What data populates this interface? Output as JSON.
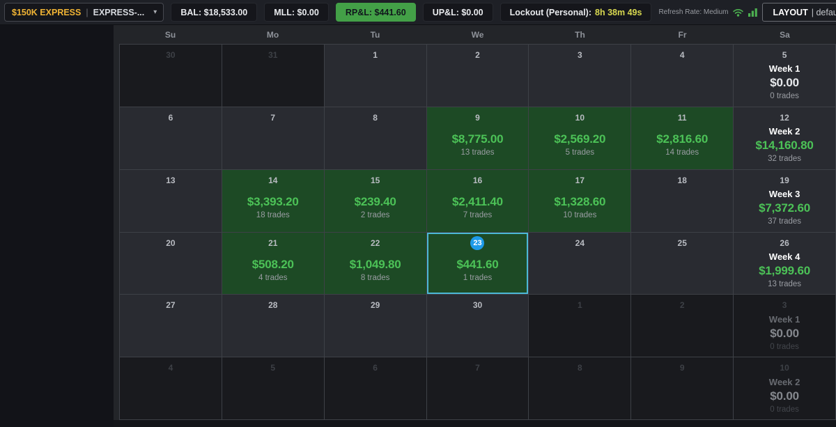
{
  "colors": {
    "accent_green": "#43a047",
    "positive_green": "#4cc257",
    "gold": "#f1b434",
    "lockout_yellow": "#d8d850",
    "today_border": "#4cb8d6",
    "today_badge": "#1e9be9",
    "icon_green": "#4caf50"
  },
  "topbar": {
    "account": {
      "name": "$150K EXPRESS",
      "separator": "|",
      "instance": "EXPRESS-...",
      "caret": "▾"
    },
    "stats": [
      {
        "label": "BAL: $18,533.00",
        "variant": "default"
      },
      {
        "label": "MLL: $0.00",
        "variant": "default"
      },
      {
        "label": "RP&L: $441.60",
        "variant": "green"
      },
      {
        "label": "UP&L: $0.00",
        "variant": "default"
      }
    ],
    "lockout": {
      "label": "Lockout (Personal):",
      "time": "8h 38m 49s"
    },
    "refresh": {
      "label": "Refresh Rate: Medium"
    },
    "layout_button": {
      "label": "LAYOUT",
      "value": "| default"
    }
  },
  "calendar": {
    "day_headers": [
      "Su",
      "Mo",
      "Tu",
      "We",
      "Th",
      "Fr",
      "Sa"
    ],
    "weeks": [
      [
        {
          "day": "30",
          "muted": true
        },
        {
          "day": "31",
          "muted": true
        },
        {
          "day": "1"
        },
        {
          "day": "2"
        },
        {
          "day": "3"
        },
        {
          "day": "4"
        },
        {
          "day": "5",
          "summary": true,
          "week_label": "Week 1",
          "pnl": "$0.00",
          "trades": "0 trades"
        }
      ],
      [
        {
          "day": "6"
        },
        {
          "day": "7"
        },
        {
          "day": "8"
        },
        {
          "day": "9",
          "pnl": "$8,775.00",
          "trades": "13 trades",
          "positive": true
        },
        {
          "day": "10",
          "pnl": "$2,569.20",
          "trades": "5 trades",
          "positive": true
        },
        {
          "day": "11",
          "pnl": "$2,816.60",
          "trades": "14 trades",
          "positive": true
        },
        {
          "day": "12",
          "summary": true,
          "week_label": "Week 2",
          "pnl": "$14,160.80",
          "trades": "32 trades",
          "positive": true
        }
      ],
      [
        {
          "day": "13"
        },
        {
          "day": "14",
          "pnl": "$3,393.20",
          "trades": "18 trades",
          "positive": true
        },
        {
          "day": "15",
          "pnl": "$239.40",
          "trades": "2 trades",
          "positive": true
        },
        {
          "day": "16",
          "pnl": "$2,411.40",
          "trades": "7 trades",
          "positive": true
        },
        {
          "day": "17",
          "pnl": "$1,328.60",
          "trades": "10 trades",
          "positive": true
        },
        {
          "day": "18"
        },
        {
          "day": "19",
          "summary": true,
          "week_label": "Week 3",
          "pnl": "$7,372.60",
          "trades": "37 trades",
          "positive": true
        }
      ],
      [
        {
          "day": "20"
        },
        {
          "day": "21",
          "pnl": "$508.20",
          "trades": "4 trades",
          "positive": true
        },
        {
          "day": "22",
          "pnl": "$1,049.80",
          "trades": "8 trades",
          "positive": true
        },
        {
          "day": "23",
          "pnl": "$441.60",
          "trades": "1 trades",
          "positive": true,
          "today": true
        },
        {
          "day": "24"
        },
        {
          "day": "25"
        },
        {
          "day": "26",
          "summary": true,
          "week_label": "Week 4",
          "pnl": "$1,999.60",
          "trades": "13 trades",
          "positive": true
        }
      ],
      [
        {
          "day": "27"
        },
        {
          "day": "28"
        },
        {
          "day": "29"
        },
        {
          "day": "30"
        },
        {
          "day": "1",
          "muted": true
        },
        {
          "day": "2",
          "muted": true
        },
        {
          "day": "3",
          "muted": true,
          "summary": true,
          "week_label": "Week 1",
          "pnl": "$0.00",
          "trades": "0 trades"
        }
      ],
      [
        {
          "day": "4",
          "muted": true
        },
        {
          "day": "5",
          "muted": true
        },
        {
          "day": "6",
          "muted": true
        },
        {
          "day": "7",
          "muted": true
        },
        {
          "day": "8",
          "muted": true
        },
        {
          "day": "9",
          "muted": true
        },
        {
          "day": "10",
          "muted": true,
          "summary": true,
          "week_label": "Week 2",
          "pnl": "$0.00",
          "trades": "0 trades"
        }
      ]
    ]
  }
}
